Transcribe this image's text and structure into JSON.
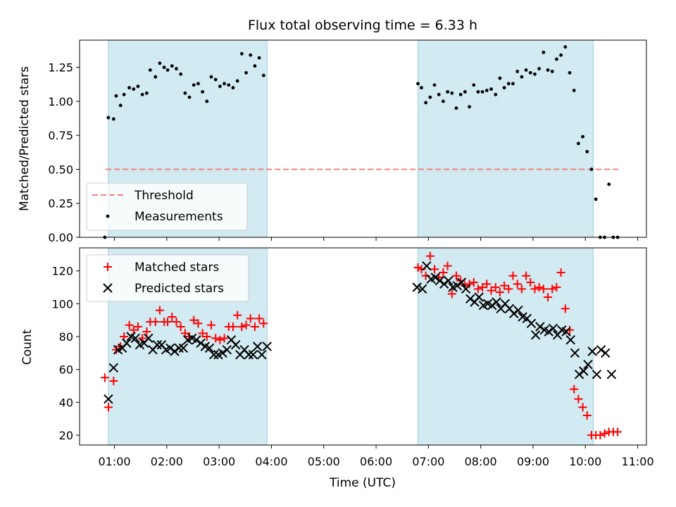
{
  "chart_data": [
    {
      "type": "scatter",
      "title": "Flux total observing time = 6.33 h",
      "xlabel": "",
      "ylabel": "Matched/Predicted stars",
      "xlim": [
        "00:20",
        "11:10"
      ],
      "ylim": [
        0,
        1.45
      ],
      "yticks": [
        "0.00",
        "0.25",
        "0.50",
        "0.75",
        "1.00",
        "1.25"
      ],
      "shaded_intervals": [
        [
          "00:53",
          "03:55"
        ],
        [
          "06:48",
          "10:09"
        ]
      ],
      "legend_position": "lower-left",
      "threshold": {
        "name": "Threshold",
        "y": 0.5,
        "x": [
          "00:50",
          "10:40"
        ],
        "color": "#f08080"
      },
      "series": [
        {
          "name": "Measurements",
          "color": "#000000",
          "x": [
            "00:49",
            "00:53",
            "00:59",
            "01:02",
            "01:07",
            "01:11",
            "01:17",
            "01:22",
            "01:27",
            "01:32",
            "01:37",
            "01:41",
            "01:47",
            "01:52",
            "01:57",
            "02:01",
            "02:06",
            "02:11",
            "02:16",
            "02:21",
            "02:26",
            "02:31",
            "02:36",
            "02:41",
            "02:46",
            "02:51",
            "02:56",
            "03:01",
            "03:06",
            "03:11",
            "03:16",
            "03:21",
            "03:26",
            "03:31",
            "03:36",
            "03:41",
            "03:46",
            "03:51",
            "06:48",
            "06:52",
            "06:57",
            "07:02",
            "07:07",
            "07:12",
            "07:17",
            "07:22",
            "07:27",
            "07:32",
            "07:37",
            "07:42",
            "07:47",
            "07:52",
            "07:57",
            "08:02",
            "08:07",
            "08:12",
            "08:17",
            "08:22",
            "08:27",
            "08:32",
            "08:37",
            "08:42",
            "08:47",
            "08:52",
            "08:57",
            "09:02",
            "09:07",
            "09:12",
            "09:17",
            "09:22",
            "09:27",
            "09:32",
            "09:37",
            "09:42",
            "09:47",
            "09:52",
            "09:57",
            "10:02",
            "10:07",
            "10:12",
            "10:17",
            "10:22",
            "10:27",
            "10:32",
            "10:37"
          ],
          "y": [
            0.0,
            0.88,
            0.87,
            1.04,
            0.97,
            1.05,
            1.1,
            1.09,
            1.11,
            1.05,
            1.06,
            1.23,
            1.18,
            1.28,
            1.25,
            1.23,
            1.26,
            1.24,
            1.2,
            1.06,
            1.03,
            1.12,
            1.13,
            1.07,
            1.0,
            1.18,
            1.16,
            1.11,
            1.13,
            1.12,
            1.1,
            1.15,
            1.35,
            1.21,
            1.34,
            1.26,
            1.32,
            1.19,
            1.13,
            1.1,
            0.99,
            1.03,
            1.12,
            1.05,
            1.0,
            1.07,
            1.06,
            0.95,
            1.05,
            1.07,
            0.96,
            1.12,
            1.07,
            1.07,
            1.08,
            1.09,
            1.05,
            1.17,
            1.1,
            1.13,
            1.13,
            1.22,
            1.18,
            1.23,
            1.21,
            1.2,
            1.24,
            1.36,
            1.23,
            1.22,
            1.31,
            1.34,
            1.4,
            1.21,
            1.08,
            0.69,
            0.74,
            0.63,
            0.5,
            0.28,
            0.0,
            0.0,
            0.39,
            0.0,
            0.0
          ]
        }
      ]
    },
    {
      "type": "scatter",
      "xlabel": "Time (UTC)",
      "ylabel": "Count",
      "xlim": [
        "00:20",
        "11:10"
      ],
      "ylim": [
        14,
        134
      ],
      "xticks": [
        "01:00",
        "02:00",
        "03:00",
        "04:00",
        "05:00",
        "06:00",
        "07:00",
        "08:00",
        "09:00",
        "10:00",
        "11:00"
      ],
      "yticks": [
        "20",
        "40",
        "60",
        "80",
        "100",
        "120"
      ],
      "shaded_intervals": [
        [
          "00:53",
          "03:55"
        ],
        [
          "06:48",
          "10:09"
        ]
      ],
      "legend_position": "upper-left",
      "series": [
        {
          "name": "Matched stars",
          "color": "#ff0000",
          "marker": "+",
          "x": [
            "00:49",
            "00:53",
            "00:59",
            "01:02",
            "01:07",
            "01:11",
            "01:17",
            "01:22",
            "01:27",
            "01:32",
            "01:37",
            "01:41",
            "01:47",
            "01:52",
            "01:57",
            "02:01",
            "02:06",
            "02:11",
            "02:16",
            "02:21",
            "02:26",
            "02:31",
            "02:36",
            "02:41",
            "02:46",
            "02:51",
            "02:56",
            "03:01",
            "03:06",
            "03:11",
            "03:16",
            "03:21",
            "03:26",
            "03:31",
            "03:36",
            "03:41",
            "03:46",
            "03:51",
            "06:48",
            "06:52",
            "06:57",
            "07:02",
            "07:07",
            "07:12",
            "07:17",
            "07:22",
            "07:27",
            "07:32",
            "07:37",
            "07:42",
            "07:47",
            "07:52",
            "07:57",
            "08:02",
            "08:07",
            "08:12",
            "08:17",
            "08:22",
            "08:27",
            "08:32",
            "08:37",
            "08:42",
            "08:47",
            "08:52",
            "08:57",
            "09:02",
            "09:07",
            "09:12",
            "09:17",
            "09:22",
            "09:27",
            "09:32",
            "09:37",
            "09:42",
            "09:47",
            "09:52",
            "09:57",
            "10:02",
            "10:07",
            "10:12",
            "10:17",
            "10:22",
            "10:27",
            "10:32",
            "10:37"
          ],
          "y": [
            55,
            37,
            53,
            72,
            74,
            80,
            87,
            84,
            86,
            79,
            83,
            89,
            89,
            96,
            89,
            89,
            92,
            89,
            86,
            82,
            80,
            90,
            88,
            82,
            80,
            87,
            79,
            78,
            79,
            86,
            86,
            93,
            86,
            87,
            91,
            86,
            91,
            88,
            122,
            121,
            117,
            129,
            121,
            116,
            119,
            123,
            106,
            117,
            114,
            111,
            112,
            113,
            109,
            110,
            112,
            108,
            110,
            107,
            111,
            109,
            117,
            112,
            109,
            117,
            113,
            109,
            110,
            109,
            104,
            109,
            110,
            119,
            97,
            84,
            48,
            42,
            37,
            32,
            20,
            20,
            20,
            21,
            22,
            22,
            22
          ]
        },
        {
          "name": "Predicted stars",
          "color": "#000000",
          "marker": "x",
          "x": [
            "00:53",
            "00:59",
            "01:04",
            "01:09",
            "01:14",
            "01:19",
            "01:24",
            "01:29",
            "01:34",
            "01:39",
            "01:44",
            "01:49",
            "01:54",
            "01:59",
            "02:04",
            "02:09",
            "02:14",
            "02:19",
            "02:24",
            "02:29",
            "02:34",
            "02:39",
            "02:44",
            "02:49",
            "02:54",
            "02:59",
            "03:04",
            "03:09",
            "03:14",
            "03:19",
            "03:24",
            "03:29",
            "03:34",
            "03:39",
            "03:44",
            "03:49",
            "03:55",
            "06:47",
            "06:53",
            "06:58",
            "07:03",
            "07:08",
            "07:13",
            "07:18",
            "07:23",
            "07:28",
            "07:33",
            "07:38",
            "07:43",
            "07:48",
            "07:53",
            "07:58",
            "08:03",
            "08:08",
            "08:13",
            "08:18",
            "08:23",
            "08:28",
            "08:33",
            "08:38",
            "08:43",
            "08:48",
            "08:53",
            "08:58",
            "09:03",
            "09:08",
            "09:13",
            "09:18",
            "09:23",
            "09:28",
            "09:33",
            "09:38",
            "09:43",
            "09:48",
            "09:53",
            "09:58",
            "10:03",
            "10:08",
            "10:13",
            "10:18",
            "10:23",
            "10:30"
          ],
          "y": [
            42,
            61,
            72,
            73,
            76,
            80,
            79,
            75,
            76,
            79,
            72,
            75,
            75,
            72,
            73,
            71,
            73,
            73,
            78,
            79,
            78,
            76,
            74,
            73,
            69,
            69,
            70,
            72,
            78,
            75,
            69,
            72,
            69,
            69,
            74,
            69,
            74,
            110,
            109,
            123,
            115,
            116,
            114,
            112,
            114,
            110,
            111,
            113,
            109,
            103,
            101,
            104,
            99,
            100,
            99,
            101,
            97,
            100,
            97,
            94,
            96,
            92,
            91,
            88,
            81,
            86,
            84,
            83,
            85,
            81,
            84,
            83,
            78,
            70,
            57,
            59,
            63,
            71,
            57,
            72,
            70,
            57
          ]
        }
      ]
    }
  ]
}
